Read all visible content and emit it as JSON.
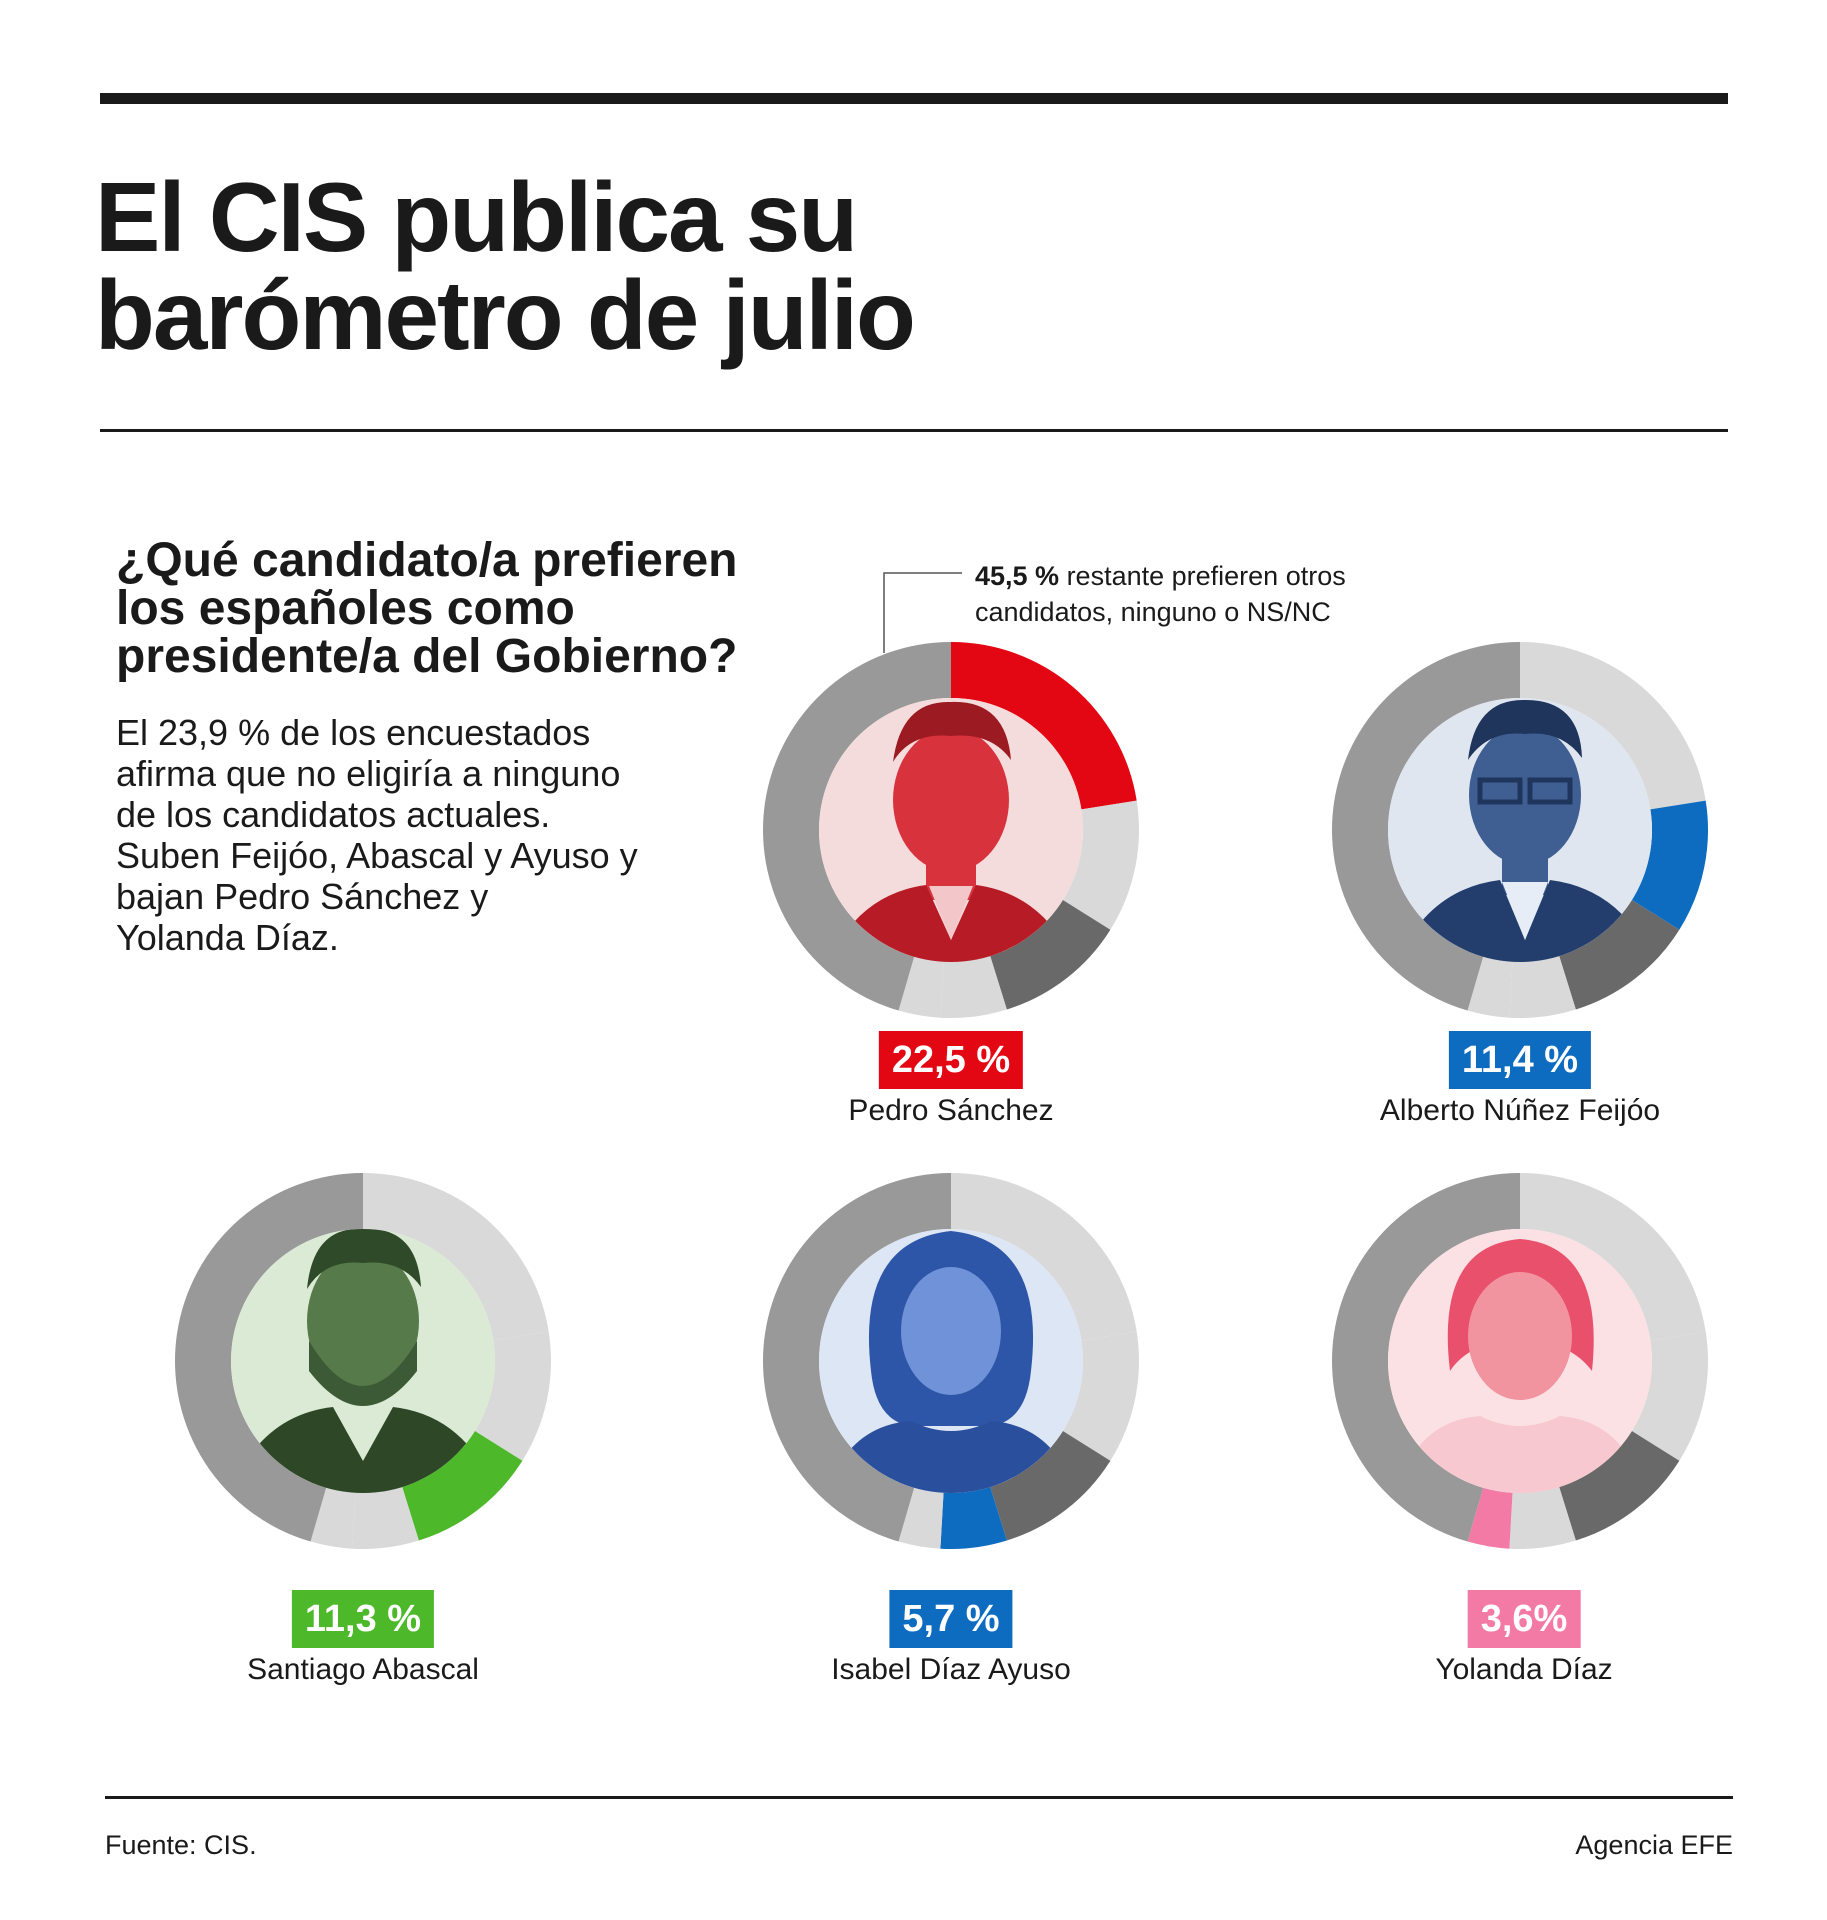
{
  "headline": {
    "line1": "El CIS publica su",
    "line2": "barómetro de julio"
  },
  "question": {
    "line1": "¿Qué candidato/a prefieren",
    "line2": "los españoles como",
    "line3": "presidente/a del Gobierno?"
  },
  "summary": {
    "lines": [
      "El 23,9 % de los encuestados",
      "afirma que no eligiría a ninguno",
      "de los candidatos actuales.",
      "Suben Feijóo, Abascal y Ayuso y",
      "bajan Pedro Sánchez y",
      "Yolanda Díaz."
    ]
  },
  "remainder_note": {
    "value": "45,5 %",
    "line1_rest": " restante prefieren otros",
    "line2": "candidatos, ninguno o NS/NC"
  },
  "colors": {
    "remainder": "#999999",
    "other_candidate": "#d9d9d9",
    "abascal_share": "#696969",
    "sanchez": "#e30613",
    "feijoo": "#0d6cbf",
    "abascal": "#4cb82a",
    "ayuso": "#0d6cbf",
    "diaz": "#f47aa6"
  },
  "chart_data": {
    "type": "pie",
    "title": "¿Qué candidato/a prefieren los españoles como presidente/a del Gobierno?",
    "order": [
      "Pedro Sánchez",
      "Alberto Núñez Feijóo",
      "Santiago Abascal",
      "Isabel Díaz Ayuso",
      "Yolanda Díaz"
    ],
    "slices": [
      {
        "name": "Pedro Sánchez",
        "value": 22.5,
        "label": "22,5 %",
        "color": "#e30613"
      },
      {
        "name": "Alberto Núñez Feijóo",
        "value": 11.4,
        "label": "11,4 %",
        "color": "#0d6cbf"
      },
      {
        "name": "Santiago Abascal",
        "value": 11.3,
        "label": "11,3 %",
        "color": "#4cb82a"
      },
      {
        "name": "Isabel Díaz Ayuso",
        "value": 5.7,
        "label": "5,7 %",
        "color": "#0d6cbf"
      },
      {
        "name": "Yolanda Díaz",
        "value": 3.6,
        "label": "3,6%",
        "color": "#f47aa6"
      }
    ],
    "remainder": {
      "value": 45.5,
      "label": "45,5 %"
    }
  },
  "footer": {
    "source": "Fuente: CIS.",
    "credit": "Agencia EFE"
  }
}
